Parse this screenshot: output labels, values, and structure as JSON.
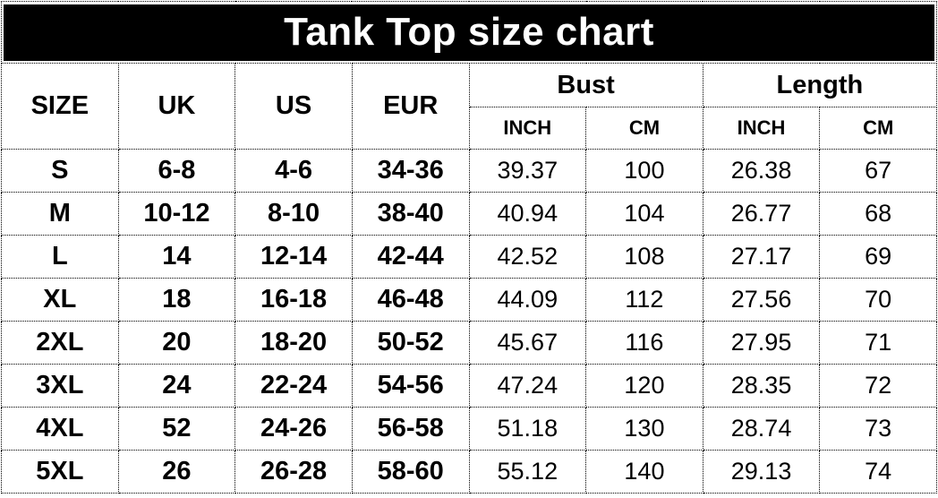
{
  "title_bar": {
    "text": "Tank Top size chart"
  },
  "colors": {
    "title_bg": "#000000",
    "title_text": "#ffffff",
    "table_text": "#000000",
    "background": "#ffffff",
    "border": "#000000"
  },
  "table": {
    "main_headers": {
      "size": "SIZE",
      "uk": "UK",
      "us": "US",
      "eur": "EUR"
    },
    "group_headers": {
      "bust": "Bust",
      "length": "Length"
    },
    "sub_headers": {
      "inch": "INCH",
      "cm": "CM"
    }
  },
  "chart_data": {
    "type": "table",
    "title": "Tank Top size chart",
    "columns": [
      "SIZE",
      "UK",
      "US",
      "EUR",
      "Bust INCH",
      "Bust CM",
      "Length INCH",
      "Length CM"
    ],
    "rows": [
      [
        "S",
        "6-8",
        "4-6",
        "34-36",
        "39.37",
        "100",
        "26.38",
        "67"
      ],
      [
        "M",
        "10-12",
        "8-10",
        "38-40",
        "40.94",
        "104",
        "26.77",
        "68"
      ],
      [
        "L",
        "14",
        "12-14",
        "42-44",
        "42.52",
        "108",
        "27.17",
        "69"
      ],
      [
        "XL",
        "18",
        "16-18",
        "46-48",
        "44.09",
        "112",
        "27.56",
        "70"
      ],
      [
        "2XL",
        "20",
        "18-20",
        "50-52",
        "45.67",
        "116",
        "27.95",
        "71"
      ],
      [
        "3XL",
        "24",
        "22-24",
        "54-56",
        "47.24",
        "120",
        "28.35",
        "72"
      ],
      [
        "4XL",
        "52",
        "24-26",
        "56-58",
        "51.18",
        "130",
        "28.74",
        "73"
      ],
      [
        "5XL",
        "26",
        "26-28",
        "58-60",
        "55.12",
        "140",
        "29.13",
        "74"
      ]
    ]
  }
}
